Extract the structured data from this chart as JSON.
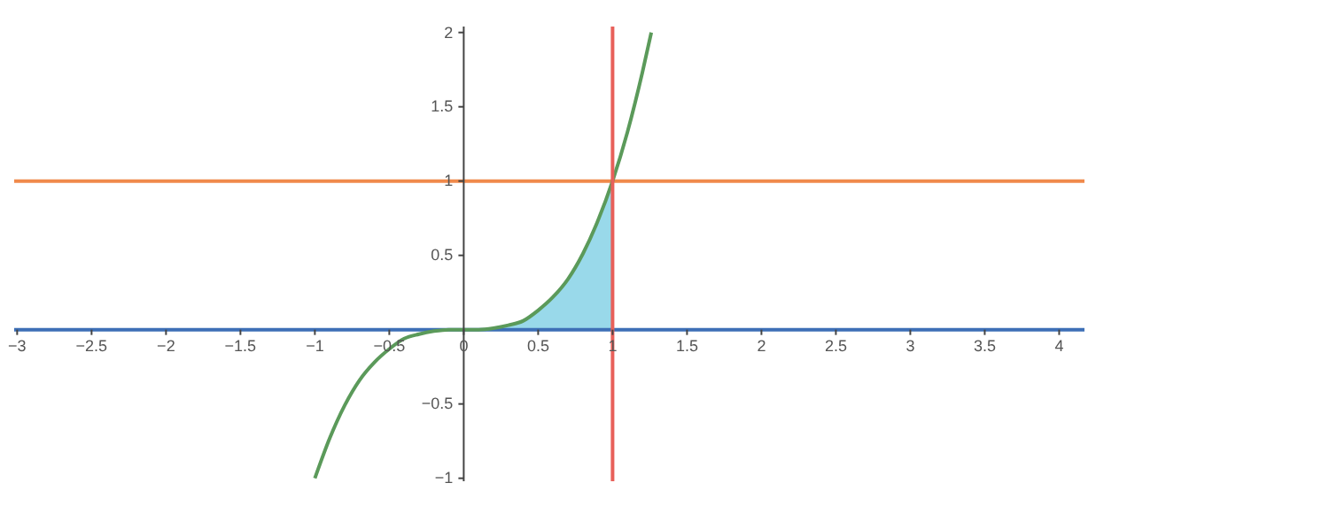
{
  "chart_data": {
    "type": "line",
    "xlim": [
      -3.02,
      4.17
    ],
    "ylim": [
      -1.02,
      2.04
    ],
    "xticks": [
      {
        "value": -3,
        "label": "−3"
      },
      {
        "value": -2.5,
        "label": "−2.5"
      },
      {
        "value": -2,
        "label": "−2"
      },
      {
        "value": -1.5,
        "label": "−1.5"
      },
      {
        "value": -1,
        "label": "−1"
      },
      {
        "value": -0.5,
        "label": "−0.5"
      },
      0,
      0.5,
      1,
      1.5,
      2,
      2.5,
      3,
      3.5,
      4
    ],
    "yticks": [
      {
        "value": -1,
        "label": "−1"
      },
      {
        "value": -0.5,
        "label": "−0.5"
      },
      0.5,
      1,
      1.5,
      2
    ],
    "grid": false,
    "marker": "none",
    "line_style": "solid",
    "series": [
      {
        "type": "area",
        "color": "#99d9ea",
        "x": [
          0,
          0.1,
          0.2,
          0.3,
          0.4,
          0.5,
          0.6,
          0.7,
          0.8,
          0.9,
          1
        ],
        "values": [
          0,
          0,
          0.01,
          0.03,
          0.06,
          0.13,
          0.22,
          0.34,
          0.51,
          0.73,
          1
        ]
      },
      {
        "color": "#3d6fb6",
        "x": [
          -3.02,
          4.17
        ],
        "values": [
          0,
          0
        ]
      },
      {
        "color": "#f08a4b",
        "x": [
          -3.02,
          4.17
        ],
        "values": [
          1,
          1
        ]
      },
      {
        "color": "#5b9a5a",
        "x": [
          -1,
          -0.9,
          -0.8,
          -0.7,
          -0.6,
          -0.5,
          -0.4,
          -0.3,
          -0.2,
          -0.1,
          0,
          0.1,
          0.2,
          0.3,
          0.4,
          0.5,
          0.6,
          0.7,
          0.8,
          0.9,
          1,
          1.1,
          1.2,
          1.26
        ],
        "values": [
          -1,
          -0.73,
          -0.51,
          -0.34,
          -0.22,
          -0.13,
          -0.06,
          -0.03,
          -0.01,
          0,
          0,
          0,
          0.01,
          0.03,
          0.06,
          0.13,
          0.22,
          0.34,
          0.51,
          0.73,
          1,
          1.33,
          1.73,
          2
        ]
      }
    ],
    "ref_lines": [
      {
        "axis": "x",
        "value": 1,
        "color": "#e8605a"
      }
    ]
  }
}
